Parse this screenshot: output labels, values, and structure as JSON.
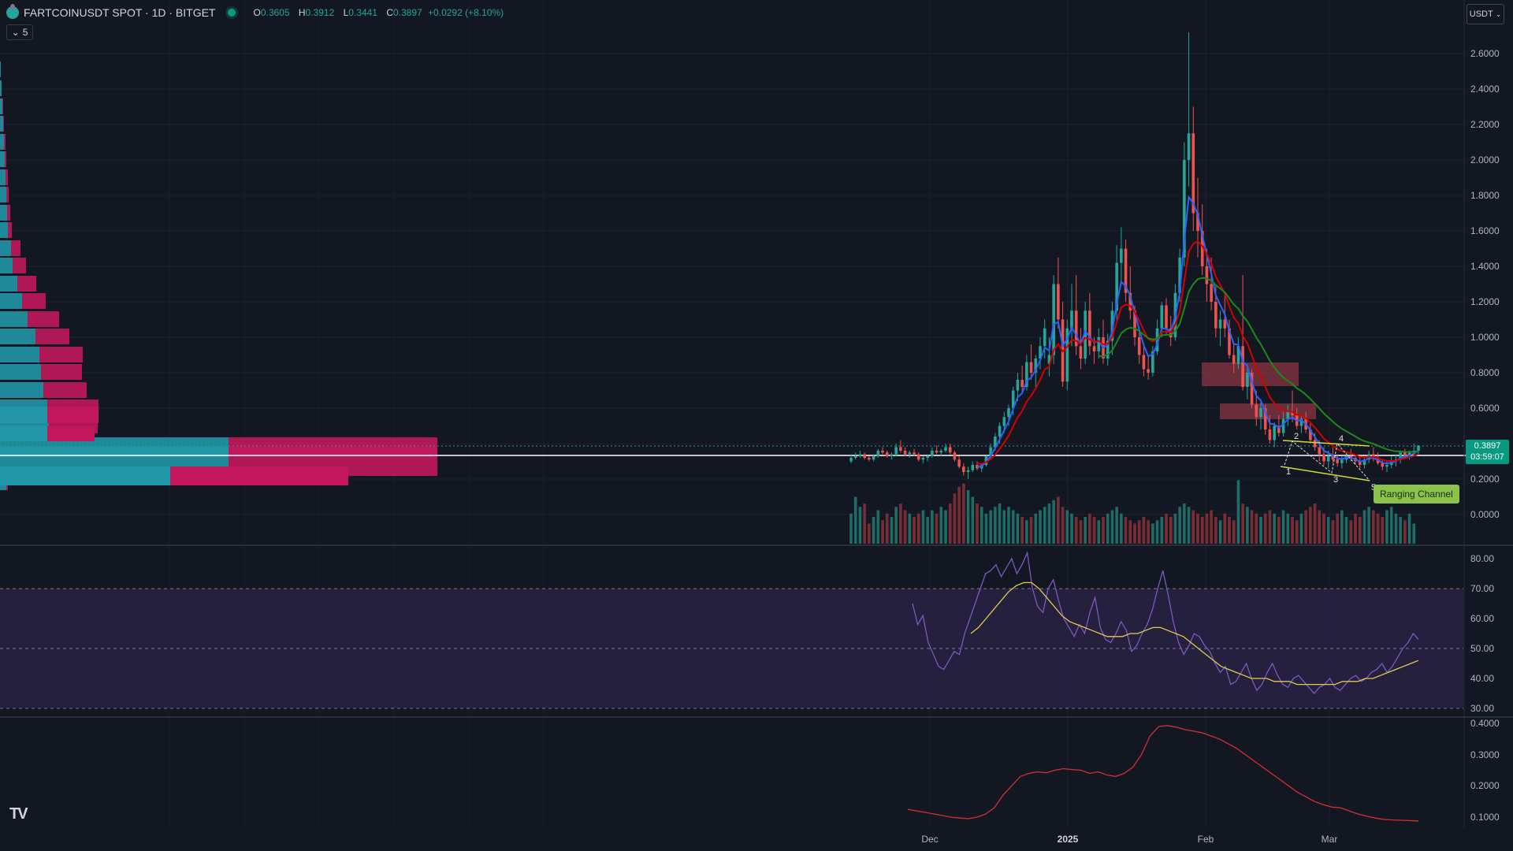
{
  "header": {
    "symbol": "FARTCOINUSDT SPOT · 1D · BITGET",
    "ohlc": {
      "o_label": "O",
      "o": "0.3605",
      "h_label": "H",
      "h": "0.3912",
      "l_label": "L",
      "l": "0.3441",
      "c_label": "C",
      "c": "0.3897",
      "change": "+0.0292 (+8.10%)"
    },
    "indicators_count": "5"
  },
  "currency_selector": {
    "label": "USDT"
  },
  "price_tag": {
    "price": "0.3897",
    "countdown": "03:59:07"
  },
  "annotation": {
    "ranging_channel": "Ranging Channel"
  },
  "price_axis": {
    "ticks": [
      "2.6000",
      "2.4000",
      "2.2000",
      "2.0000",
      "1.8000",
      "1.6000",
      "1.4000",
      "1.2000",
      "1.0000",
      "0.8000",
      "0.6000",
      "0.4000",
      "0.2000",
      "0.0000"
    ]
  },
  "rsi_axis": {
    "ticks": [
      "80.00",
      "70.00",
      "60.00",
      "50.00",
      "40.00",
      "30.00"
    ]
  },
  "third_axis": {
    "ticks": [
      "0.4000",
      "0.3000",
      "0.2000",
      "0.1000"
    ]
  },
  "time_axis": {
    "ticks": [
      "Dec",
      "2025",
      "Feb",
      "Mar"
    ]
  },
  "wave_labels": [
    "1",
    "2",
    "3",
    "4",
    "5"
  ],
  "colors": {
    "background": "#131722",
    "up": "#26a69a",
    "down": "#ef5350",
    "ema_fast": "#2962ff",
    "ema_mid": "#d50000",
    "ema_slow": "#1b8a1b",
    "rsi": "#7e57c2",
    "rsi_ma": "#e6c84f",
    "vp_up": "#2196a6",
    "vp_down": "#c2185b"
  },
  "chart_data": {
    "type": "candlestick",
    "price_axis_range": [
      -0.1,
      2.75
    ],
    "rsi_range": [
      28,
      82
    ],
    "third_range": [
      0.08,
      0.41
    ],
    "x_range_days": [
      0,
      146
    ],
    "candles": [
      [
        0.3,
        0.34,
        0.29,
        0.32
      ],
      [
        0.32,
        0.35,
        0.31,
        0.33
      ],
      [
        0.33,
        0.36,
        0.32,
        0.34
      ],
      [
        0.34,
        0.35,
        0.31,
        0.32
      ],
      [
        0.32,
        0.33,
        0.3,
        0.31
      ],
      [
        0.31,
        0.34,
        0.3,
        0.33
      ],
      [
        0.33,
        0.37,
        0.32,
        0.36
      ],
      [
        0.36,
        0.38,
        0.34,
        0.35
      ],
      [
        0.35,
        0.36,
        0.32,
        0.33
      ],
      [
        0.33,
        0.35,
        0.31,
        0.34
      ],
      [
        0.34,
        0.4,
        0.33,
        0.38
      ],
      [
        0.38,
        0.42,
        0.35,
        0.36
      ],
      [
        0.36,
        0.38,
        0.33,
        0.34
      ],
      [
        0.34,
        0.36,
        0.32,
        0.35
      ],
      [
        0.35,
        0.37,
        0.33,
        0.34
      ],
      [
        0.34,
        0.35,
        0.3,
        0.31
      ],
      [
        0.31,
        0.33,
        0.29,
        0.32
      ],
      [
        0.32,
        0.34,
        0.3,
        0.33
      ],
      [
        0.33,
        0.38,
        0.32,
        0.36
      ],
      [
        0.36,
        0.39,
        0.34,
        0.35
      ],
      [
        0.35,
        0.37,
        0.33,
        0.36
      ],
      [
        0.36,
        0.4,
        0.35,
        0.38
      ],
      [
        0.38,
        0.4,
        0.34,
        0.35
      ],
      [
        0.35,
        0.36,
        0.3,
        0.31
      ],
      [
        0.31,
        0.33,
        0.26,
        0.27
      ],
      [
        0.27,
        0.29,
        0.22,
        0.24
      ],
      [
        0.24,
        0.27,
        0.2,
        0.25
      ],
      [
        0.25,
        0.3,
        0.24,
        0.28
      ],
      [
        0.28,
        0.3,
        0.25,
        0.26
      ],
      [
        0.26,
        0.29,
        0.24,
        0.28
      ],
      [
        0.28,
        0.34,
        0.27,
        0.33
      ],
      [
        0.33,
        0.4,
        0.31,
        0.38
      ],
      [
        0.38,
        0.46,
        0.36,
        0.44
      ],
      [
        0.44,
        0.52,
        0.4,
        0.5
      ],
      [
        0.5,
        0.58,
        0.46,
        0.55
      ],
      [
        0.55,
        0.62,
        0.5,
        0.6
      ],
      [
        0.6,
        0.72,
        0.56,
        0.7
      ],
      [
        0.7,
        0.8,
        0.64,
        0.76
      ],
      [
        0.76,
        0.84,
        0.68,
        0.72
      ],
      [
        0.72,
        0.9,
        0.7,
        0.86
      ],
      [
        0.86,
        0.96,
        0.76,
        0.8
      ],
      [
        0.8,
        0.9,
        0.72,
        0.88
      ],
      [
        0.88,
        1.0,
        0.82,
        0.95
      ],
      [
        0.95,
        1.1,
        0.88,
        1.05
      ],
      [
        0.85,
        1.0,
        0.78,
        0.9
      ],
      [
        0.9,
        1.35,
        0.85,
        1.3
      ],
      [
        1.3,
        1.45,
        1.05,
        1.1
      ],
      [
        1.1,
        1.2,
        0.72,
        0.75
      ],
      [
        0.75,
        1.1,
        0.7,
        1.05
      ],
      [
        1.05,
        1.3,
        0.95,
        1.15
      ],
      [
        1.15,
        1.35,
        0.9,
        0.95
      ],
      [
        0.95,
        1.05,
        0.82,
        0.88
      ],
      [
        0.88,
        1.2,
        0.85,
        1.15
      ],
      [
        1.15,
        1.25,
        0.9,
        0.95
      ],
      [
        0.95,
        1.0,
        0.85,
        0.92
      ],
      [
        0.92,
        1.05,
        0.88,
        1.0
      ],
      [
        1.0,
        1.1,
        0.85,
        0.88
      ],
      [
        0.88,
        1.02,
        0.84,
        0.98
      ],
      [
        0.98,
        1.2,
        0.9,
        1.15
      ],
      [
        1.15,
        1.52,
        1.1,
        1.42
      ],
      [
        1.42,
        1.62,
        1.3,
        1.5
      ],
      [
        1.5,
        1.55,
        1.2,
        1.25
      ],
      [
        1.25,
        1.4,
        1.1,
        1.15
      ],
      [
        1.15,
        1.18,
        0.95,
        1.0
      ],
      [
        1.0,
        1.05,
        0.85,
        0.9
      ],
      [
        0.9,
        0.95,
        0.78,
        0.82
      ],
      [
        0.82,
        0.9,
        0.76,
        0.8
      ],
      [
        0.8,
        0.95,
        0.78,
        0.92
      ],
      [
        0.92,
        1.1,
        0.9,
        1.05
      ],
      [
        1.05,
        1.2,
        1.0,
        1.18
      ],
      [
        1.18,
        1.22,
        1.02,
        1.05
      ],
      [
        1.05,
        1.12,
        0.95,
        1.0
      ],
      [
        1.0,
        1.3,
        0.98,
        1.25
      ],
      [
        1.25,
        1.5,
        1.2,
        1.45
      ],
      [
        1.45,
        2.1,
        1.4,
        2.0
      ],
      [
        2.0,
        2.72,
        1.85,
        2.15
      ],
      [
        2.15,
        2.3,
        1.6,
        1.7
      ],
      [
        1.7,
        1.9,
        1.45,
        1.6
      ],
      [
        1.6,
        1.75,
        1.35,
        1.4
      ],
      [
        1.4,
        1.5,
        1.2,
        1.3
      ],
      [
        1.3,
        1.45,
        1.15,
        1.2
      ],
      [
        1.2,
        1.3,
        1.0,
        1.05
      ],
      [
        1.05,
        1.15,
        0.95,
        1.1
      ],
      [
        1.1,
        1.25,
        1.0,
        1.05
      ],
      [
        1.05,
        1.1,
        0.88,
        0.9
      ],
      [
        0.9,
        0.96,
        0.8,
        0.85
      ],
      [
        0.85,
        1.0,
        0.82,
        0.95
      ],
      [
        0.95,
        1.35,
        0.7,
        0.72
      ],
      [
        0.72,
        0.85,
        0.65,
        0.8
      ],
      [
        0.8,
        0.82,
        0.6,
        0.62
      ],
      [
        0.62,
        0.7,
        0.5,
        0.55
      ],
      [
        0.55,
        0.65,
        0.48,
        0.6
      ],
      [
        0.6,
        0.62,
        0.45,
        0.48
      ],
      [
        0.48,
        0.56,
        0.4,
        0.42
      ],
      [
        0.42,
        0.52,
        0.38,
        0.5
      ],
      [
        0.5,
        0.56,
        0.44,
        0.46
      ],
      [
        0.46,
        0.58,
        0.44,
        0.54
      ],
      [
        0.54,
        0.62,
        0.5,
        0.58
      ],
      [
        0.58,
        0.7,
        0.52,
        0.56
      ],
      [
        0.56,
        0.6,
        0.48,
        0.5
      ],
      [
        0.5,
        0.56,
        0.46,
        0.54
      ],
      [
        0.54,
        0.58,
        0.46,
        0.48
      ],
      [
        0.48,
        0.52,
        0.4,
        0.42
      ],
      [
        0.42,
        0.46,
        0.36,
        0.38
      ],
      [
        0.38,
        0.42,
        0.3,
        0.34
      ],
      [
        0.34,
        0.38,
        0.28,
        0.3
      ],
      [
        0.3,
        0.36,
        0.26,
        0.33
      ],
      [
        0.33,
        0.38,
        0.29,
        0.31
      ],
      [
        0.31,
        0.34,
        0.27,
        0.29
      ],
      [
        0.29,
        0.33,
        0.26,
        0.31
      ],
      [
        0.31,
        0.35,
        0.29,
        0.33
      ],
      [
        0.33,
        0.37,
        0.3,
        0.32
      ],
      [
        0.32,
        0.34,
        0.28,
        0.3
      ],
      [
        0.3,
        0.33,
        0.26,
        0.28
      ],
      [
        0.28,
        0.32,
        0.26,
        0.31
      ],
      [
        0.31,
        0.36,
        0.29,
        0.34
      ],
      [
        0.34,
        0.38,
        0.3,
        0.32
      ],
      [
        0.32,
        0.35,
        0.28,
        0.29
      ],
      [
        0.29,
        0.31,
        0.25,
        0.27
      ],
      [
        0.27,
        0.3,
        0.24,
        0.28
      ],
      [
        0.28,
        0.33,
        0.26,
        0.3
      ],
      [
        0.3,
        0.34,
        0.27,
        0.31
      ],
      [
        0.31,
        0.36,
        0.29,
        0.35
      ],
      [
        0.35,
        0.37,
        0.32,
        0.33
      ],
      [
        0.33,
        0.36,
        0.31,
        0.35
      ],
      [
        0.35,
        0.4,
        0.34,
        0.36
      ],
      [
        0.36,
        0.39,
        0.34,
        0.39
      ]
    ],
    "volumes": [
      0.45,
      0.7,
      0.55,
      0.6,
      0.3,
      0.4,
      0.5,
      0.35,
      0.45,
      0.4,
      0.55,
      0.6,
      0.5,
      0.45,
      0.4,
      0.45,
      0.5,
      0.4,
      0.5,
      0.45,
      0.55,
      0.5,
      0.6,
      0.75,
      0.85,
      0.9,
      0.8,
      0.7,
      0.6,
      0.55,
      0.45,
      0.5,
      0.55,
      0.6,
      0.5,
      0.55,
      0.5,
      0.45,
      0.4,
      0.35,
      0.4,
      0.45,
      0.5,
      0.55,
      0.6,
      0.65,
      0.7,
      0.55,
      0.5,
      0.45,
      0.4,
      0.35,
      0.4,
      0.45,
      0.4,
      0.35,
      0.4,
      0.45,
      0.5,
      0.55,
      0.45,
      0.4,
      0.35,
      0.3,
      0.35,
      0.4,
      0.35,
      0.3,
      0.35,
      0.4,
      0.45,
      0.4,
      0.45,
      0.55,
      0.6,
      0.55,
      0.5,
      0.45,
      0.4,
      0.45,
      0.5,
      0.4,
      0.35,
      0.45,
      0.4,
      0.35,
      0.95,
      0.6,
      0.55,
      0.5,
      0.45,
      0.4,
      0.45,
      0.5,
      0.45,
      0.4,
      0.5,
      0.45,
      0.4,
      0.35,
      0.45,
      0.5,
      0.55,
      0.6,
      0.5,
      0.45,
      0.4,
      0.35,
      0.45,
      0.5,
      0.4,
      0.35,
      0.45,
      0.4,
      0.5,
      0.55,
      0.5,
      0.45,
      0.4,
      0.5,
      0.55,
      0.45,
      0.4,
      0.35,
      0.45,
      0.3
    ],
    "rsi": [
      65,
      58,
      61,
      52,
      48,
      44,
      43,
      46,
      49,
      48,
      55,
      60,
      65,
      70,
      75,
      76,
      78,
      74,
      77,
      80,
      75,
      78,
      82,
      70,
      64,
      62,
      70,
      73,
      66,
      60,
      57,
      54,
      58,
      55,
      62,
      67,
      57,
      53,
      52,
      55,
      59,
      56,
      49,
      51,
      55,
      58,
      63,
      70,
      76,
      68,
      59,
      52,
      48,
      51,
      55,
      54,
      51,
      49,
      45,
      42,
      44,
      38,
      39,
      42,
      45,
      40,
      36,
      38,
      42,
      45,
      41,
      38,
      37,
      40,
      41,
      39,
      37,
      35,
      37,
      38,
      40,
      37,
      36,
      38,
      40,
      41,
      39,
      40,
      42,
      43,
      45,
      42,
      44,
      47,
      50,
      52,
      55,
      53
    ],
    "rsi_ma": [
      55,
      57,
      60,
      63,
      66,
      69,
      71,
      72,
      72,
      70,
      67,
      64,
      61,
      59,
      58,
      57,
      56,
      55,
      54,
      54,
      54,
      55,
      55,
      56,
      57,
      57,
      56,
      55,
      54,
      52,
      50,
      48,
      46,
      44,
      43,
      42,
      41,
      40,
      40,
      40,
      39,
      39,
      39,
      38,
      38,
      38,
      38,
      38,
      38,
      39,
      39,
      39,
      40,
      40,
      41,
      42,
      43,
      44,
      45,
      46
    ],
    "third": [
      0.125,
      0.12,
      0.115,
      0.11,
      0.105,
      0.1,
      0.097,
      0.095,
      0.1,
      0.11,
      0.13,
      0.17,
      0.2,
      0.23,
      0.24,
      0.245,
      0.242,
      0.25,
      0.255,
      0.252,
      0.25,
      0.24,
      0.245,
      0.235,
      0.23,
      0.24,
      0.26,
      0.3,
      0.36,
      0.39,
      0.393,
      0.388,
      0.38,
      0.375,
      0.37,
      0.36,
      0.35,
      0.335,
      0.32,
      0.3,
      0.28,
      0.26,
      0.24,
      0.22,
      0.2,
      0.18,
      0.165,
      0.15,
      0.14,
      0.132,
      0.13,
      0.12,
      0.11,
      0.103,
      0.097,
      0.093,
      0.091,
      0.09,
      0.089,
      0.088
    ]
  }
}
